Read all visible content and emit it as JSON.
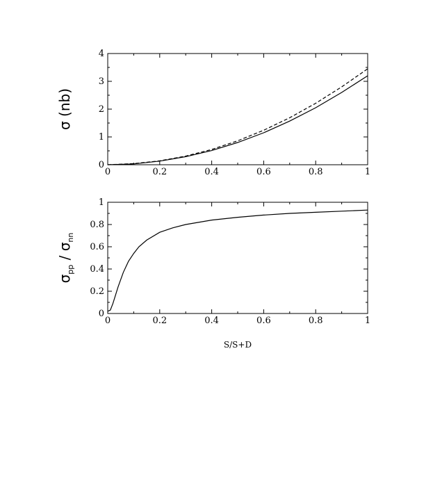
{
  "chart_data": [
    {
      "type": "line",
      "ylabel": "σ (nb)",
      "xlabel": "",
      "xlim": [
        0,
        1
      ],
      "ylim": [
        0,
        4
      ],
      "x_ticks": [
        "0",
        "0.2",
        "0.4",
        "0.6",
        "0.8",
        "1"
      ],
      "y_ticks": [
        "0",
        "1",
        "2",
        "3",
        "4"
      ],
      "grid": false,
      "x": [
        0,
        0.1,
        0.2,
        0.3,
        0.4,
        0.5,
        0.6,
        0.7,
        0.8,
        0.9,
        1.0
      ],
      "series": [
        {
          "style": "solid",
          "values": [
            0,
            0.03,
            0.13,
            0.29,
            0.51,
            0.8,
            1.15,
            1.57,
            2.05,
            2.6,
            3.2
          ]
        },
        {
          "style": "dashed",
          "values": [
            0,
            0.04,
            0.14,
            0.31,
            0.55,
            0.86,
            1.24,
            1.69,
            2.21,
            2.8,
            3.45
          ]
        }
      ]
    },
    {
      "type": "line",
      "ylabel_main": "σ",
      "ylabel_sub1": "pp",
      "ylabel_mid": " / σ",
      "ylabel_sub2": "nn",
      "xlabel": "S/S+D",
      "xlim": [
        0,
        1
      ],
      "ylim": [
        0,
        1
      ],
      "x_ticks": [
        "0",
        "0.2",
        "0.4",
        "0.6",
        "0.8",
        "1"
      ],
      "y_ticks": [
        "0",
        "0.2",
        "0.4",
        "0.6",
        "0.8",
        "1"
      ],
      "grid": false,
      "x": [
        0,
        0.01,
        0.02,
        0.04,
        0.06,
        0.08,
        0.1,
        0.12,
        0.15,
        0.2,
        0.25,
        0.3,
        0.4,
        0.5,
        0.6,
        0.7,
        0.8,
        0.9,
        1.0
      ],
      "series": [
        {
          "style": "solid",
          "values": [
            0.02,
            0.03,
            0.09,
            0.24,
            0.37,
            0.47,
            0.54,
            0.6,
            0.66,
            0.73,
            0.77,
            0.8,
            0.84,
            0.865,
            0.885,
            0.9,
            0.91,
            0.92,
            0.93
          ]
        }
      ]
    }
  ]
}
